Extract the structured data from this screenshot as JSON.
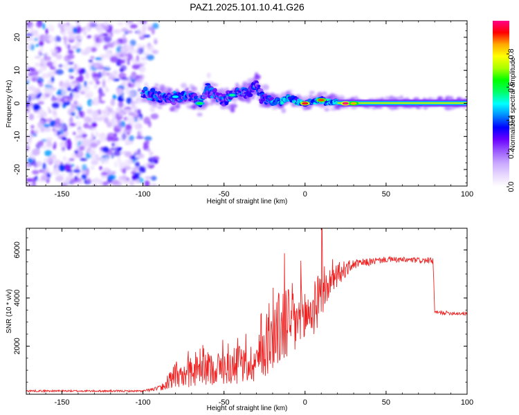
{
  "title": "PAZ1.2025.101.10.41.G26",
  "chart_data": [
    {
      "type": "heatmap",
      "name": "spectrogram",
      "xlabel": "Height of straight line (km)",
      "ylabel": "Frequency (Hz)",
      "xlim": [
        -172,
        100
      ],
      "ylim": [
        -25,
        25
      ],
      "xticks": [
        -150,
        -100,
        -50,
        0,
        50,
        100
      ],
      "yticks": [
        -20,
        -10,
        0,
        10,
        20
      ],
      "colorbar": {
        "label": "Normalized spectral amplitude",
        "range": [
          0,
          1
        ],
        "ticks": [
          "0.0",
          "0.2",
          "0.4",
          "0.6",
          "0.8"
        ],
        "tick_values": [
          0.0,
          0.2,
          0.4,
          0.6,
          0.8
        ],
        "colors": [
          "#ffffff",
          "#e8d8ff",
          "#c9a8ff",
          "#9b5cff",
          "#6a00ff",
          "#0000ff",
          "#0088ff",
          "#00ffff",
          "#00ff66",
          "#00ff00",
          "#aaff00",
          "#ffff00",
          "#ffaa00",
          "#ff0000",
          "#ff0088"
        ]
      },
      "centerline": [
        {
          "x": -100,
          "y": 3.0
        },
        {
          "x": -90,
          "y": 2.0
        },
        {
          "x": -80,
          "y": 1.5
        },
        {
          "x": -72,
          "y": 2.5
        },
        {
          "x": -65,
          "y": 0.5
        },
        {
          "x": -60,
          "y": 4.0
        },
        {
          "x": -55,
          "y": 2.5
        },
        {
          "x": -50,
          "y": 1.0
        },
        {
          "x": -45,
          "y": 2.5
        },
        {
          "x": -40,
          "y": 3.5
        },
        {
          "x": -35,
          "y": 3.0
        },
        {
          "x": -30,
          "y": 6.0
        },
        {
          "x": -27,
          "y": 2.0
        },
        {
          "x": -20,
          "y": 0.5
        },
        {
          "x": -15,
          "y": 0.5
        },
        {
          "x": -10,
          "y": 2.0
        },
        {
          "x": -5,
          "y": 0.5
        },
        {
          "x": 0,
          "y": 0.0
        },
        {
          "x": 5,
          "y": 0.5
        },
        {
          "x": 10,
          "y": 1.0
        },
        {
          "x": 15,
          "y": 0.5
        },
        {
          "x": 20,
          "y": 0.2
        },
        {
          "x": 30,
          "y": 0.1
        },
        {
          "x": 50,
          "y": 0.1
        },
        {
          "x": 75,
          "y": 0.1
        },
        {
          "x": 100,
          "y": 0.1
        }
      ],
      "hotspots": [
        {
          "x": 0,
          "y": 0,
          "v": 0.95
        },
        {
          "x": 10,
          "y": 1,
          "v": 0.9
        },
        {
          "x": 25,
          "y": 0,
          "v": 1.0
        },
        {
          "x": 30,
          "y": 0,
          "v": 0.85
        },
        {
          "x": -65,
          "y": 0,
          "v": 0.6
        },
        {
          "x": -45,
          "y": 2.5,
          "v": 0.55
        },
        {
          "x": -80,
          "y": 2,
          "v": 0.5
        }
      ]
    },
    {
      "type": "line",
      "name": "snr",
      "xlabel": "Height of straight line (km)",
      "ylabel": "SNR (10 * v/v)",
      "xlim": [
        -172,
        100
      ],
      "ylim": [
        0,
        6900
      ],
      "xticks": [
        -150,
        -100,
        -50,
        0,
        50,
        100
      ],
      "yticks": [
        2000,
        4000,
        6000
      ],
      "color": "#ee2222",
      "series_anchors": [
        {
          "x": -172,
          "y": 140,
          "noise": 40
        },
        {
          "x": -100,
          "y": 130,
          "noise": 40
        },
        {
          "x": -90,
          "y": 250,
          "noise": 100
        },
        {
          "x": -80,
          "y": 600,
          "noise": 400
        },
        {
          "x": -70,
          "y": 900,
          "noise": 600
        },
        {
          "x": -55,
          "y": 1100,
          "noise": 700
        },
        {
          "x": -40,
          "y": 1100,
          "noise": 700
        },
        {
          "x": -30,
          "y": 1400,
          "noise": 900
        },
        {
          "x": -20,
          "y": 2400,
          "noise": 1500
        },
        {
          "x": -12,
          "y": 3000,
          "noise": 1800
        },
        {
          "x": -5,
          "y": 3000,
          "noise": 1500
        },
        {
          "x": 5,
          "y": 3500,
          "noise": 1200
        },
        {
          "x": 12,
          "y": 4300,
          "noise": 800
        },
        {
          "x": 20,
          "y": 5000,
          "noise": 500
        },
        {
          "x": 30,
          "y": 5400,
          "noise": 200
        },
        {
          "x": 50,
          "y": 5600,
          "noise": 120
        },
        {
          "x": 79,
          "y": 5550,
          "noise": 120
        },
        {
          "x": 80,
          "y": 3400,
          "noise": 80
        },
        {
          "x": 100,
          "y": 3350,
          "noise": 80
        }
      ],
      "peak": {
        "x": 10.5,
        "y": 6900
      }
    }
  ]
}
